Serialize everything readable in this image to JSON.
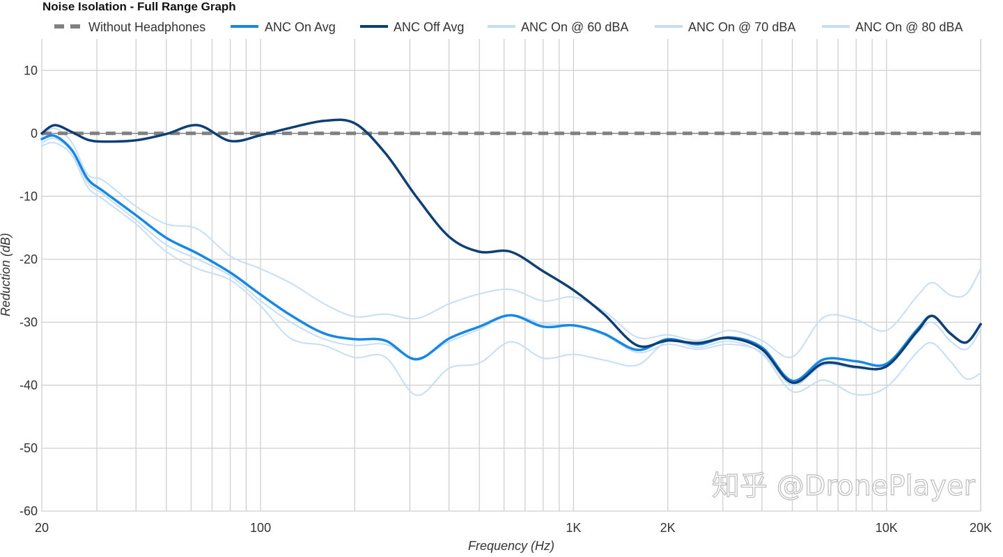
{
  "chart_data": {
    "type": "line",
    "title": "Noise Isolation - Full Range Graph",
    "xlabel": "Frequency (Hz)",
    "ylabel": "Reduction (dB)",
    "xscale": "log",
    "xlim": [
      20,
      20000
    ],
    "ylim": [
      -60,
      15
    ],
    "grid": true,
    "legend_placement": "top",
    "yticks": [
      10,
      0,
      -10,
      -20,
      -30,
      -40,
      -50,
      -60
    ],
    "ytick_labels": [
      "10",
      "0",
      "-10",
      "-20",
      "-30",
      "-40",
      "-50",
      "-60"
    ],
    "xticks": [
      20,
      100,
      1000,
      2000,
      10000,
      20000
    ],
    "xtick_labels": [
      "20",
      "100",
      "1K",
      "2K",
      "10K",
      "20K"
    ],
    "x": [
      20,
      22,
      25,
      28,
      31.5,
      40,
      50,
      63,
      80,
      100,
      125,
      160,
      200,
      250,
      315,
      400,
      500,
      630,
      800,
      1000,
      1250,
      1600,
      2000,
      2500,
      3150,
      4000,
      5000,
      6300,
      8000,
      10000,
      12500,
      14000,
      16000,
      18000,
      20000
    ],
    "series": [
      {
        "name": "ANC On @ 60 dBA",
        "color": "#c6def5",
        "width": 2,
        "values": [
          -0.5,
          0.8,
          -1.5,
          -6.5,
          -7.5,
          -11.6,
          -14.4,
          -15.2,
          -19.5,
          -21.5,
          -23.8,
          -27.1,
          -29.1,
          -28.7,
          -29.4,
          -27.1,
          -25.5,
          -24.8,
          -26.6,
          -26.0,
          -28.2,
          -32.4,
          -32.0,
          -32.9,
          -31.3,
          -32.9,
          -35.5,
          -29.2,
          -29.6,
          -31.3,
          -25.9,
          -23.7,
          -25.7,
          -25.5,
          -21.5
        ]
      },
      {
        "name": "ANC On @ 70 dBA",
        "color": "#c6def5",
        "width": 2,
        "values": [
          -1.5,
          -0.8,
          -3.0,
          -7.8,
          -9.7,
          -13.8,
          -17.7,
          -20.0,
          -22.6,
          -26.6,
          -30.0,
          -32.7,
          -33.7,
          -33.5,
          -35.7,
          -33.1,
          -31.1,
          -28.9,
          -30.2,
          -30.5,
          -32.0,
          -34.8,
          -33.5,
          -34.3,
          -33.5,
          -34.8,
          -40.0,
          -36.8,
          -37.3,
          -37.0,
          -31.8,
          -30.0,
          -33.0,
          -34.3,
          -31.2
        ]
      },
      {
        "name": "ANC On @ 80 dBA",
        "color": "#c6def5",
        "width": 2,
        "values": [
          -2.0,
          -1.5,
          -3.5,
          -8.5,
          -10.5,
          -14.4,
          -18.8,
          -21.5,
          -23.3,
          -27.4,
          -32.6,
          -33.7,
          -35.6,
          -35.5,
          -41.6,
          -37.3,
          -36.5,
          -33.1,
          -35.7,
          -35.1,
          -36.0,
          -36.8,
          -33.0,
          -34.0,
          -33.0,
          -35.0,
          -41.0,
          -39.2,
          -41.5,
          -40.3,
          -34.8,
          -33.3,
          -36.2,
          -39.0,
          -38.1
        ]
      },
      {
        "name": "Without Headphones",
        "color": "#808080",
        "width": 4,
        "dashed": true,
        "values": [
          0,
          0,
          0,
          0,
          0,
          0,
          0,
          0,
          0,
          0,
          0,
          0,
          0,
          0,
          0,
          0,
          0,
          0,
          0,
          0,
          0,
          0,
          0,
          0,
          0,
          0,
          0,
          0,
          0,
          0,
          0,
          0,
          0,
          0,
          0
        ]
      },
      {
        "name": "ANC On Avg",
        "color": "#1787e6",
        "width": 3.5,
        "values": [
          -0.9,
          -0.4,
          -2.7,
          -7.2,
          -9.2,
          -13.0,
          -16.6,
          -19.1,
          -22.1,
          -25.6,
          -28.9,
          -31.8,
          -32.7,
          -32.9,
          -35.9,
          -32.6,
          -30.7,
          -28.9,
          -30.7,
          -30.5,
          -31.8,
          -34.4,
          -32.7,
          -33.5,
          -32.4,
          -34.0,
          -39.3,
          -35.9,
          -36.2,
          -36.6,
          -31.2,
          -29.0,
          -31.8,
          -33.2,
          -30.3
        ]
      },
      {
        "name": "ANC Off Avg",
        "color": "#0e3f74",
        "width": 3.5,
        "values": [
          0,
          1.3,
          0.2,
          -1.0,
          -1.3,
          -1.1,
          -0.1,
          1.3,
          -1.2,
          -0.3,
          0.9,
          2.0,
          1.6,
          -3.1,
          -10.1,
          -16.4,
          -18.8,
          -18.8,
          -21.9,
          -24.9,
          -28.7,
          -33.7,
          -32.9,
          -33.3,
          -32.5,
          -34.3,
          -39.6,
          -36.5,
          -37.1,
          -37.0,
          -31.5,
          -29.0,
          -31.8,
          -33.2,
          -30.3
        ]
      }
    ],
    "legend": [
      "Without Headphones",
      "ANC On Avg",
      "ANC Off Avg",
      "ANC On @ 60 dBA",
      "ANC On @ 70 dBA",
      "ANC On @ 80 dBA"
    ]
  },
  "watermark": "知乎 @DronePlayer"
}
